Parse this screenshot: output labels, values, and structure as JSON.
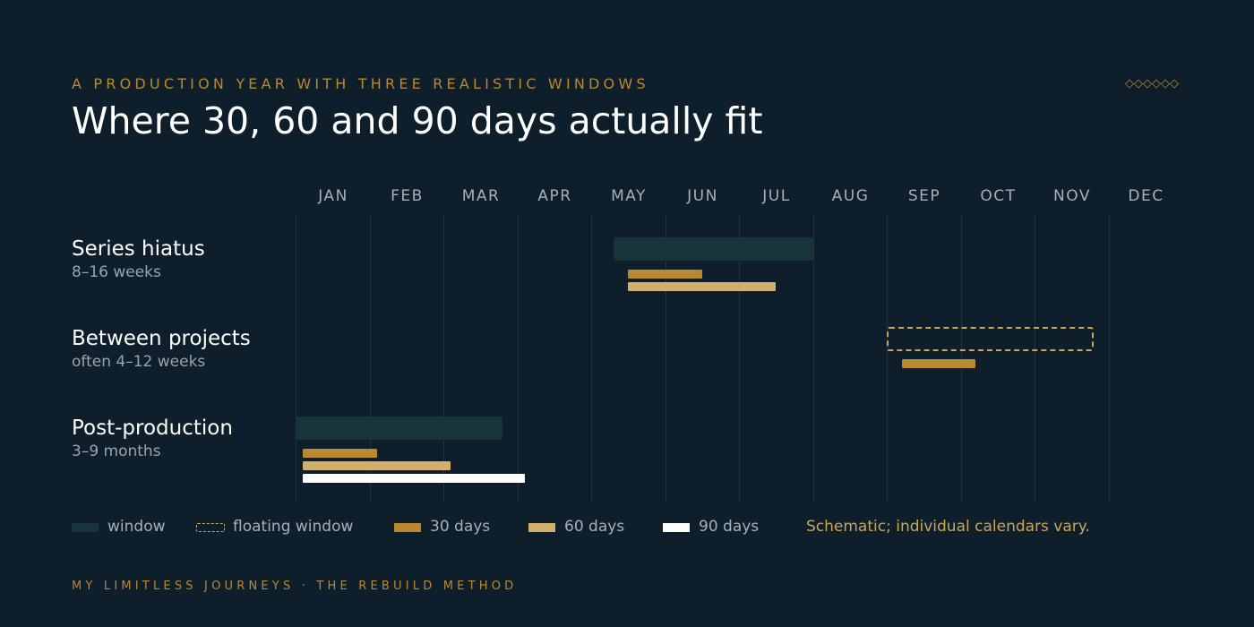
{
  "header": {
    "eyebrow": "A PRODUCTION YEAR WITH THREE REALISTIC WINDOWS",
    "ornament": "◇◇◇◇◇◇",
    "title": "Where 30, 60 and 90 days actually fit"
  },
  "months": [
    "JAN",
    "FEB",
    "MAR",
    "APR",
    "MAY",
    "JUN",
    "JUL",
    "AUG",
    "SEP",
    "OCT",
    "NOV",
    "DEC"
  ],
  "rows": [
    {
      "title": "Series hiatus",
      "subtitle": "8–16 weeks",
      "window": {
        "style": "solid",
        "start_month": 4.3,
        "end_month": 7.0
      },
      "bars": [
        {
          "kind": "30 days",
          "start_month": 4.5,
          "end_month": 5.5
        },
        {
          "kind": "60 days",
          "start_month": 4.5,
          "end_month": 6.5
        }
      ]
    },
    {
      "title": "Between projects",
      "subtitle": "often 4–12 weeks",
      "window": {
        "style": "floating",
        "start_month": 8.0,
        "end_month": 10.8
      },
      "bars": [
        {
          "kind": "30 days",
          "start_month": 8.2,
          "end_month": 9.2
        }
      ]
    },
    {
      "title": "Post-production",
      "subtitle": "3–9 months",
      "window": {
        "style": "solid",
        "start_month": 0.0,
        "end_month": 2.8
      },
      "bars": [
        {
          "kind": "30 days",
          "start_month": 0.1,
          "end_month": 1.1
        },
        {
          "kind": "60 days",
          "start_month": 0.1,
          "end_month": 2.1
        },
        {
          "kind": "90 days",
          "start_month": 0.1,
          "end_month": 3.1
        }
      ]
    }
  ],
  "legend": {
    "window": "window",
    "floating": "floating window",
    "d30": "30 days",
    "d60": "60 days",
    "d90": "90 days",
    "note": "Schematic; individual calendars vary."
  },
  "footer": "MY LIMITLESS JOURNEYS · THE REBUILD METHOD",
  "colors": {
    "background": "#0f1e2b",
    "accent_gold": "#b8892f",
    "light_gold": "#d2b06b",
    "window_fill": "#17343b",
    "white": "#ffffff"
  }
}
